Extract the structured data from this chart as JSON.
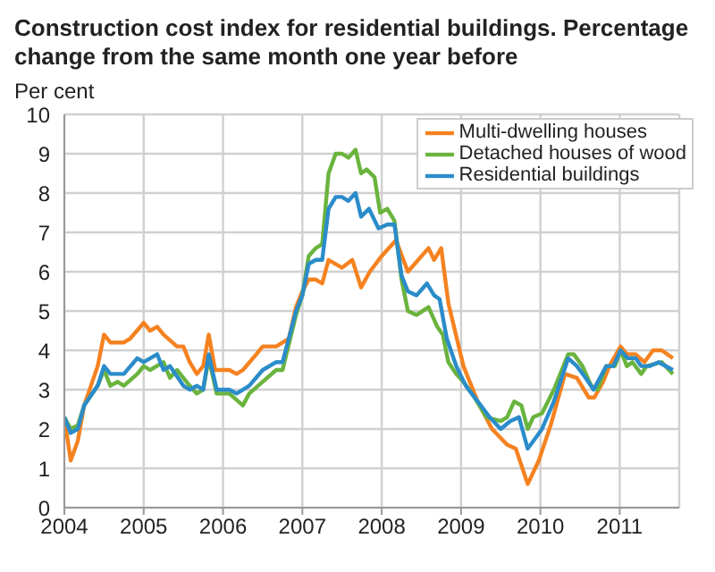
{
  "chart_data": {
    "type": "line",
    "title": "Construction cost index for residential buildings. Percentage change from the same month one year before",
    "ylabel": "Per cent",
    "xlim": [
      2004,
      2011.75
    ],
    "xticks": [
      2004,
      2005,
      2006,
      2007,
      2008,
      2009,
      2010,
      2011
    ],
    "ylim": [
      0,
      10
    ],
    "yticks": [
      0,
      1,
      2,
      3,
      4,
      5,
      6,
      7,
      8,
      9,
      10
    ],
    "grid": true,
    "legend": "top right",
    "marker": "none",
    "line_style": "solid",
    "series": [
      {
        "name": "Multi-dwelling houses",
        "color": "#f58220",
        "x": [
          2004,
          2004.08,
          2004.17,
          2004.25,
          2004.42,
          2004.5,
          2004.58,
          2004.75,
          2004.83,
          2005,
          2005.08,
          2005.17,
          2005.25,
          2005.42,
          2005.5,
          2005.58,
          2005.67,
          2005.75,
          2005.82,
          2005.9,
          2006.08,
          2006.17,
          2006.25,
          2006.42,
          2006.5,
          2006.67,
          2006.83,
          2006.92,
          2007,
          2007.08,
          2007.17,
          2007.25,
          2007.33,
          2007.5,
          2007.63,
          2007.74,
          2007.85,
          2008,
          2008.18,
          2008.33,
          2008.59,
          2008.66,
          2008.75,
          2008.84,
          2009.03,
          2009.21,
          2009.39,
          2009.58,
          2009.69,
          2009.84,
          2009.98,
          2010.13,
          2010.31,
          2010.46,
          2010.61,
          2010.68,
          2010.79,
          2010.87,
          2011.01,
          2011.09,
          2011.2,
          2011.31,
          2011.42,
          2011.53,
          2011.67
        ],
        "values": [
          2.3,
          1.2,
          1.7,
          2.6,
          3.6,
          4.4,
          4.2,
          4.2,
          4.3,
          4.7,
          4.5,
          4.6,
          4.4,
          4.1,
          4.1,
          3.7,
          3.4,
          3.6,
          4.4,
          3.5,
          3.5,
          3.4,
          3.5,
          3.9,
          4.1,
          4.1,
          4.3,
          5.1,
          5.5,
          5.8,
          5.8,
          5.7,
          6.3,
          6.1,
          6.3,
          5.6,
          6.0,
          6.4,
          6.8,
          6.0,
          6.6,
          6.3,
          6.6,
          5.2,
          3.6,
          2.7,
          2.0,
          1.6,
          1.5,
          0.6,
          1.2,
          2.1,
          3.4,
          3.3,
          2.8,
          2.8,
          3.2,
          3.6,
          4.1,
          3.9,
          3.9,
          3.7,
          4.0,
          4.0,
          3.8
        ]
      },
      {
        "name": "Detached houses of wood",
        "color": "#6ab43e",
        "x": [
          2004,
          2004.08,
          2004.17,
          2004.25,
          2004.42,
          2004.5,
          2004.58,
          2004.67,
          2004.75,
          2004.92,
          2005,
          2005.08,
          2005.25,
          2005.33,
          2005.42,
          2005.58,
          2005.67,
          2005.75,
          2005.82,
          2005.92,
          2006.08,
          2006.25,
          2006.33,
          2006.5,
          2006.67,
          2006.75,
          2006.92,
          2007,
          2007.08,
          2007.17,
          2007.25,
          2007.33,
          2007.42,
          2007.5,
          2007.58,
          2007.67,
          2007.74,
          2007.81,
          2007.91,
          2007.98,
          2008.07,
          2008.16,
          2008.25,
          2008.33,
          2008.44,
          2008.59,
          2008.7,
          2008.77,
          2008.84,
          2008.94,
          2009.03,
          2009.17,
          2009.32,
          2009.5,
          2009.58,
          2009.67,
          2009.76,
          2009.84,
          2009.91,
          2010.02,
          2010.17,
          2010.35,
          2010.42,
          2010.53,
          2010.64,
          2010.72,
          2010.83,
          2010.94,
          2011.01,
          2011.09,
          2011.16,
          2011.27,
          2011.34,
          2011.53,
          2011.67
        ],
        "values": [
          2.3,
          2.0,
          2.1,
          2.6,
          3.1,
          3.5,
          3.1,
          3.2,
          3.1,
          3.4,
          3.6,
          3.5,
          3.7,
          3.3,
          3.5,
          3.1,
          2.9,
          3.0,
          3.8,
          2.9,
          2.9,
          2.6,
          2.9,
          3.2,
          3.5,
          3.5,
          4.9,
          5.4,
          6.4,
          6.6,
          6.7,
          8.5,
          9.0,
          9.0,
          8.9,
          9.1,
          8.5,
          8.6,
          8.4,
          7.5,
          7.6,
          7.3,
          5.8,
          5.0,
          4.9,
          5.1,
          4.6,
          4.4,
          3.7,
          3.4,
          3.2,
          2.8,
          2.3,
          2.2,
          2.3,
          2.7,
          2.6,
          2.0,
          2.3,
          2.4,
          3.0,
          3.9,
          3.9,
          3.6,
          3.1,
          3.0,
          3.6,
          3.6,
          4.0,
          3.6,
          3.7,
          3.4,
          3.6,
          3.7,
          3.4
        ]
      },
      {
        "name": "Residential buildings",
        "color": "#2b8cca",
        "x": [
          2004,
          2004.08,
          2004.17,
          2004.25,
          2004.42,
          2004.5,
          2004.58,
          2004.75,
          2004.92,
          2005,
          2005.17,
          2005.25,
          2005.33,
          2005.5,
          2005.58,
          2005.67,
          2005.75,
          2005.82,
          2005.92,
          2006.08,
          2006.17,
          2006.33,
          2006.5,
          2006.67,
          2006.75,
          2006.92,
          2007,
          2007.08,
          2007.17,
          2007.25,
          2007.33,
          2007.42,
          2007.5,
          2007.58,
          2007.67,
          2007.74,
          2007.84,
          2007.96,
          2008.07,
          2008.16,
          2008.25,
          2008.33,
          2008.44,
          2008.57,
          2008.66,
          2008.73,
          2008.82,
          2008.94,
          2009.06,
          2009.21,
          2009.36,
          2009.5,
          2009.62,
          2009.73,
          2009.84,
          2009.95,
          2010.02,
          2010.17,
          2010.35,
          2010.46,
          2010.57,
          2010.67,
          2010.83,
          2010.92,
          2011.01,
          2011.1,
          2011.2,
          2011.27,
          2011.38,
          2011.49,
          2011.67
        ],
        "values": [
          2.3,
          1.9,
          2.0,
          2.6,
          3.1,
          3.6,
          3.4,
          3.4,
          3.8,
          3.7,
          3.9,
          3.5,
          3.6,
          3.1,
          3.0,
          3.1,
          3.0,
          3.9,
          3.0,
          3.0,
          2.9,
          3.1,
          3.5,
          3.7,
          3.7,
          5.0,
          5.4,
          6.2,
          6.3,
          6.3,
          7.6,
          7.9,
          7.9,
          7.8,
          8.0,
          7.4,
          7.6,
          7.1,
          7.2,
          7.2,
          5.9,
          5.5,
          5.4,
          5.7,
          5.4,
          5.3,
          4.3,
          3.6,
          3.1,
          2.7,
          2.3,
          2.0,
          2.2,
          2.3,
          1.5,
          1.8,
          2.0,
          2.7,
          3.8,
          3.6,
          3.3,
          3.0,
          3.6,
          3.6,
          4.0,
          3.8,
          3.8,
          3.6,
          3.6,
          3.7,
          3.5
        ]
      }
    ]
  }
}
